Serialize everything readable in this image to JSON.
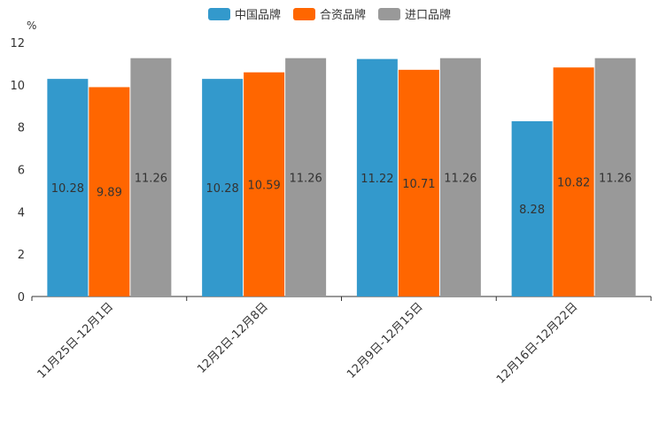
{
  "chart_data": {
    "type": "bar",
    "unit_label": "%",
    "categories": [
      "11月25日-12月1日",
      "12月2日-12月8日",
      "12月9日-12月15日",
      "12月16日-12月22日"
    ],
    "series": [
      {
        "name": "中国品牌",
        "color": "#3399cc",
        "values": [
          10.28,
          10.28,
          11.22,
          8.28
        ]
      },
      {
        "name": "合资品牌",
        "color": "#ff6600",
        "values": [
          9.89,
          10.59,
          10.71,
          10.82
        ]
      },
      {
        "name": "进口品牌",
        "color": "#999999",
        "values": [
          11.26,
          11.26,
          11.26,
          11.26
        ]
      }
    ],
    "data_labels": [
      [
        "10.28",
        "10.28",
        "11.22",
        "8.28"
      ],
      [
        "9.89",
        "10.59",
        "10.71",
        "10.82"
      ],
      [
        "11.26",
        "11.26",
        "11.26",
        "11.26"
      ]
    ],
    "yticks": [
      "0",
      "2",
      "4",
      "6",
      "8",
      "10",
      "12"
    ],
    "ylim": [
      0,
      12
    ],
    "legend_position": "top-center"
  }
}
